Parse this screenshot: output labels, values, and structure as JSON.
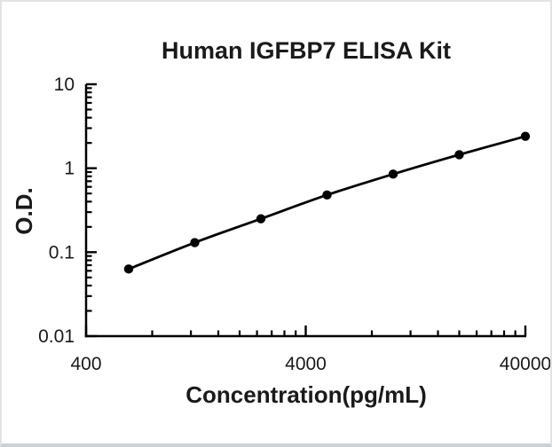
{
  "frame": {
    "background": "#ffffff",
    "border_color": "#e3e3e3",
    "bottom_edge_color": "#ccd1d5"
  },
  "chart": {
    "title": "Human IGFBP7 ELISA Kit",
    "ylabel": "O.D.",
    "xlabel": "Concentration(pg/mL)",
    "ink_color": "#000000"
  },
  "chart_data": {
    "type": "line",
    "title": "Human IGFBP7 ELISA Kit",
    "xlabel": "Concentration(pg/mL)",
    "ylabel": "O.D.",
    "x_scale": "log",
    "y_scale": "log",
    "xlim": [
      400,
      40000
    ],
    "ylim": [
      0.01,
      10
    ],
    "x_major_ticks": [
      400,
      4000,
      40000
    ],
    "x_tick_labels": [
      "400",
      "4000",
      "40000"
    ],
    "x_minor_tick_multipliers": [
      2,
      3,
      4,
      5,
      6,
      7,
      8,
      9
    ],
    "x_minor_tick_bases": [
      400,
      4000
    ],
    "y_major_ticks": [
      0.01,
      0.1,
      1,
      10
    ],
    "y_tick_labels": [
      "0.01",
      "0.1",
      "1",
      "10"
    ],
    "y_minor_tick_multipliers": [
      2,
      3,
      4,
      5,
      6,
      7,
      8,
      9
    ],
    "y_minor_tick_bases": [
      0.01,
      0.1,
      1
    ],
    "grid": false,
    "legend": null,
    "series": [
      {
        "name": "standard-curve",
        "marker": "circle",
        "color": "#000000",
        "x": [
          625,
          1250,
          2500,
          5000,
          10000,
          20000,
          40000
        ],
        "y": [
          0.063,
          0.13,
          0.25,
          0.48,
          0.85,
          1.45,
          2.4
        ]
      }
    ]
  }
}
